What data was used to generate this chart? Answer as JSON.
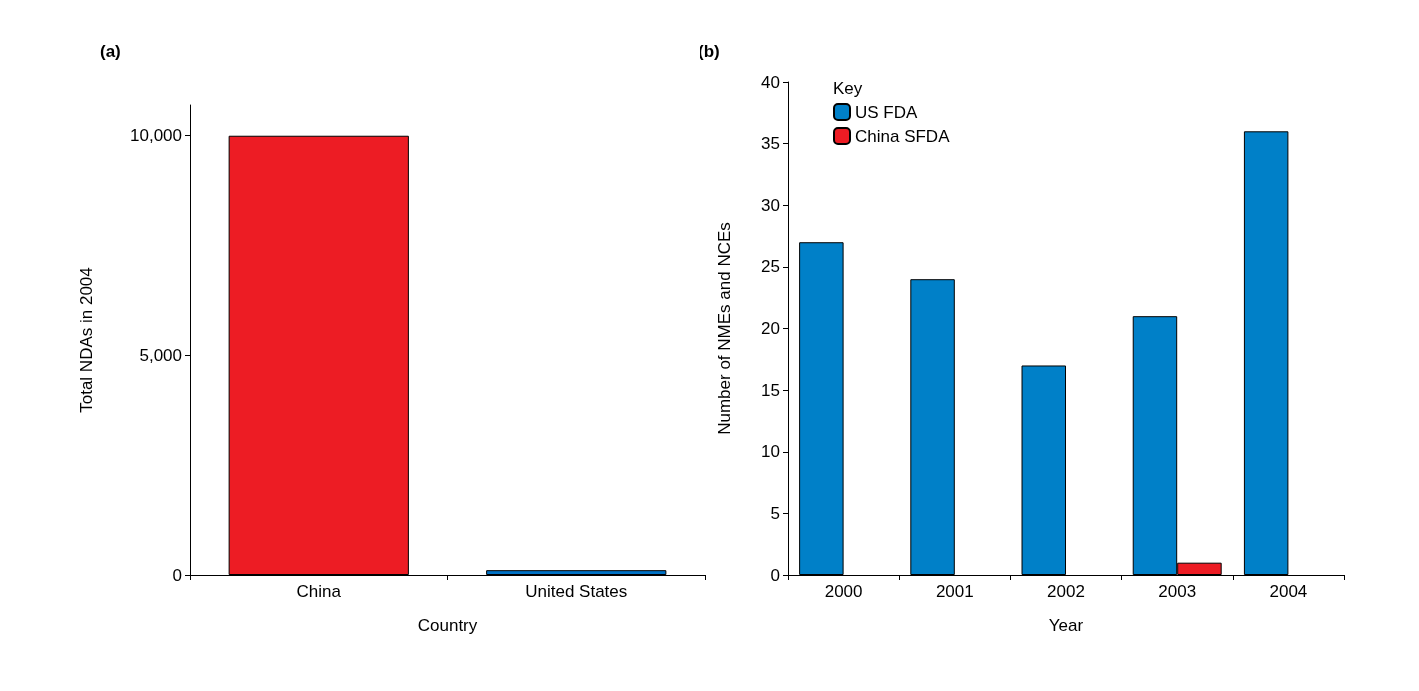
{
  "chart_data": [
    {
      "type": "bar",
      "title": "(a)",
      "xlabel": "Country",
      "ylabel": "Total NDAs in 2004",
      "categories": [
        "China",
        "United States"
      ],
      "values": [
        10000,
        110
      ],
      "colors": [
        "#ed1c24",
        "#0072c6"
      ],
      "ylim": [
        0,
        10700
      ],
      "yticks": [
        0,
        {
          "value": 5000,
          "label": "5,000"
        },
        {
          "value": 10000,
          "label": "10,000"
        }
      ],
      "grid": false,
      "legend": false
    },
    {
      "type": "bar",
      "title": "(b)",
      "xlabel": "Year",
      "ylabel": "Number of NMEs and NCEs",
      "legend_title": "Key",
      "categories": [
        "2000",
        "2001",
        "2002",
        "2003",
        "2004"
      ],
      "series": [
        {
          "name": "US FDA",
          "color": "#0080c8",
          "values": [
            27,
            24,
            17,
            21,
            36
          ]
        },
        {
          "name": "China SFDA",
          "color": "#ed1c24",
          "values": [
            null,
            null,
            null,
            1,
            null
          ]
        }
      ],
      "ylim": [
        0,
        40
      ],
      "yticks": [
        0,
        5,
        10,
        15,
        20,
        25,
        30,
        35,
        40
      ],
      "grid": false,
      "legend": "top left"
    }
  ]
}
